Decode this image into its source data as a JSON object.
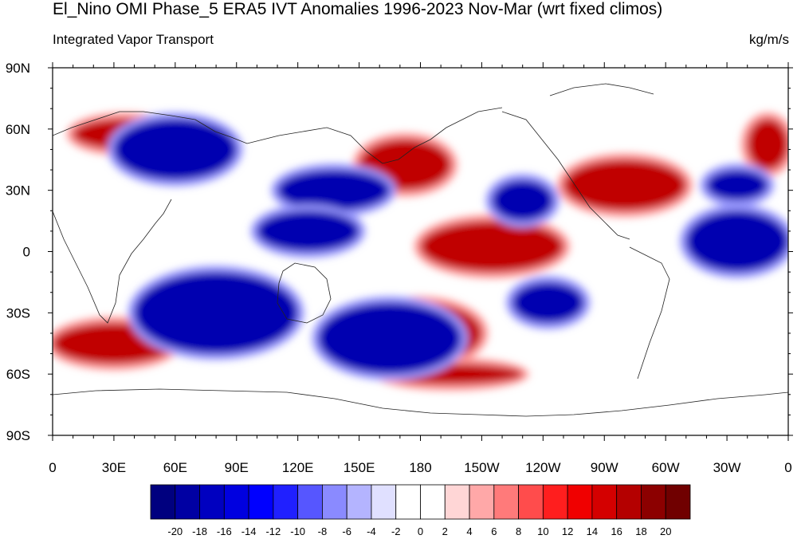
{
  "title": "El_Nino OMI Phase_5 ERA5 IVT Anomalies 1996-2023 Nov-Mar (wrt fixed climos)",
  "subtitle_left": "Integrated Vapor Transport",
  "subtitle_right": "kg/m/s",
  "lat_labels": [
    "90N",
    "60N",
    "30N",
    "0",
    "30S",
    "60S",
    "90S"
  ],
  "lon_labels": [
    "0",
    "30E",
    "60E",
    "90E",
    "120E",
    "150E",
    "180",
    "150W",
    "120W",
    "90W",
    "60W",
    "30W",
    "0"
  ],
  "colorbar": {
    "labels": [
      "-20",
      "-18",
      "-16",
      "-14",
      "-12",
      "-10",
      "-8",
      "-6",
      "-4",
      "-2",
      "0",
      "2",
      "4",
      "6",
      "8",
      "10",
      "12",
      "14",
      "16",
      "18",
      "20"
    ],
    "colors": [
      "#00007f",
      "#0000a3",
      "#0000c0",
      "#0000e0",
      "#0000ff",
      "#2020ff",
      "#5656ff",
      "#8a8aff",
      "#b4b4ff",
      "#e0e0ff",
      "#ffffff",
      "#ffffff",
      "#ffd6d6",
      "#ffa8a8",
      "#ff7a7a",
      "#ff4c4c",
      "#ff1e1e",
      "#f00000",
      "#d40000",
      "#b40000",
      "#8c0000",
      "#700000"
    ]
  },
  "map_data": {
    "projection": "cylindrical-equidistant",
    "lon_range": [
      0,
      360
    ],
    "lat_range": [
      -90,
      90
    ],
    "variable": "IVT anomaly",
    "anomaly_regions": [
      {
        "sign": "positive",
        "lon": [
          180,
          250
        ],
        "lat": [
          -10,
          15
        ]
      },
      {
        "sign": "positive",
        "lon": [
          150,
          210
        ],
        "lat": [
          -55,
          -25
        ]
      },
      {
        "sign": "positive",
        "lon": [
          160,
          230
        ],
        "lat": [
          -65,
          -55
        ]
      },
      {
        "sign": "positive",
        "lon": [
          250,
          310
        ],
        "lat": [
          20,
          45
        ]
      },
      {
        "sign": "positive",
        "lon": [
          150,
          195
        ],
        "lat": [
          30,
          55
        ]
      },
      {
        "sign": "positive",
        "lon": [
          0,
          60
        ],
        "lat": [
          -55,
          -35
        ]
      },
      {
        "sign": "positive",
        "lon": [
          60,
          110
        ],
        "lat": [
          -35,
          -20
        ]
      },
      {
        "sign": "positive",
        "lon": [
          10,
          60
        ],
        "lat": [
          50,
          65
        ]
      },
      {
        "sign": "positive",
        "lon": [
          340,
          360
        ],
        "lat": [
          40,
          65
        ]
      },
      {
        "sign": "negative",
        "lon": [
          40,
          120
        ],
        "lat": [
          -50,
          -10
        ]
      },
      {
        "sign": "negative",
        "lon": [
          130,
          200
        ],
        "lat": [
          -60,
          -25
        ]
      },
      {
        "sign": "negative",
        "lon": [
          30,
          90
        ],
        "lat": [
          35,
          65
        ]
      },
      {
        "sign": "negative",
        "lon": [
          110,
          165
        ],
        "lat": [
          20,
          40
        ]
      },
      {
        "sign": "negative",
        "lon": [
          215,
          245
        ],
        "lat": [
          15,
          35
        ]
      },
      {
        "sign": "negative",
        "lon": [
          310,
          360
        ],
        "lat": [
          -10,
          20
        ]
      },
      {
        "sign": "negative",
        "lon": [
          100,
          150
        ],
        "lat": [
          0,
          20
        ]
      },
      {
        "sign": "negative",
        "lon": [
          225,
          260
        ],
        "lat": [
          -35,
          -15
        ]
      },
      {
        "sign": "negative",
        "lon": [
          320,
          350
        ],
        "lat": [
          25,
          40
        ]
      }
    ]
  }
}
